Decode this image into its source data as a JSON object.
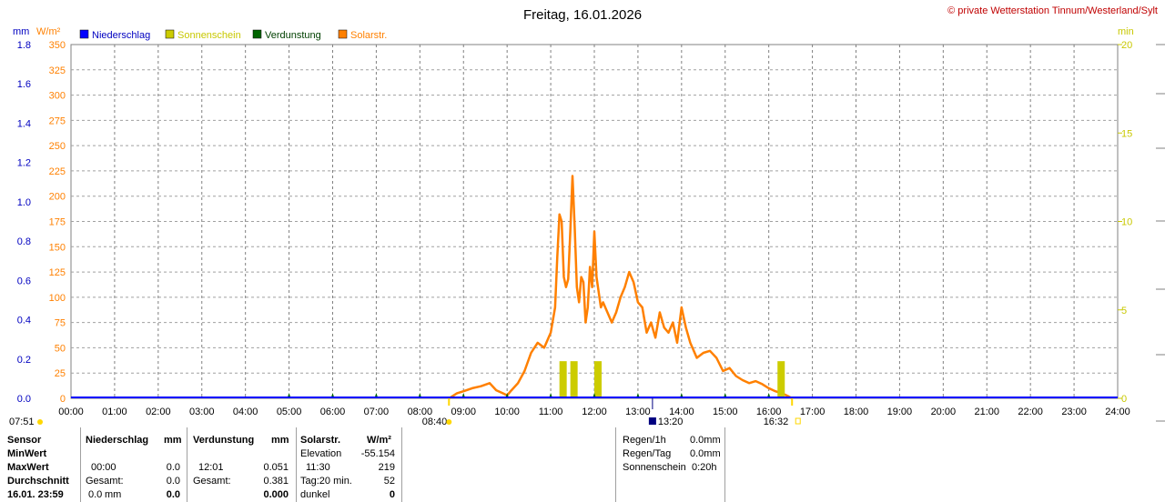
{
  "title": "Freitag, 16.01.2026",
  "copyright": "© private Wetterstation Tinnum/Westerland/Sylt",
  "units": {
    "mm": "mm",
    "wm2": "W/m²",
    "min": "min"
  },
  "legend": [
    {
      "label": "Niederschlag",
      "color": "#0000ff",
      "text_color": "#0000c0"
    },
    {
      "label": "Sonnenschein",
      "color": "#cccc00",
      "text_color": "#c8c800"
    },
    {
      "label": "Verdunstung",
      "color": "#006400",
      "text_color": "#004000"
    },
    {
      "label": "Solarstr.",
      "color": "#ff8000",
      "text_color": "#ff8000"
    }
  ],
  "markers": {
    "sunrise": "07:51",
    "solar_start": "08:40",
    "noon": "13:20",
    "solar_end": "16:32"
  },
  "chart_data": {
    "type": "line",
    "x_ticks": [
      "00:00",
      "01:00",
      "02:00",
      "03:00",
      "04:00",
      "05:00",
      "06:00",
      "07:00",
      "08:00",
      "09:00",
      "10:00",
      "11:00",
      "12:00",
      "13:00",
      "14:00",
      "15:00",
      "16:00",
      "17:00",
      "18:00",
      "19:00",
      "20:00",
      "21:00",
      "22:00",
      "23:00",
      "24:00"
    ],
    "y_left_wm2": {
      "ticks": [
        "0",
        "25",
        "50",
        "75",
        "100",
        "125",
        "150",
        "175",
        "200",
        "225",
        "250",
        "275",
        "300",
        "325",
        "350"
      ],
      "range": [
        0,
        350
      ]
    },
    "y_left_mm": {
      "ticks": [
        "0.0",
        "0.2",
        "0.4",
        "0.6",
        "0.8",
        "1.0",
        "1.2",
        "1.4",
        "1.6",
        "1.8"
      ],
      "range": [
        0,
        1.8
      ]
    },
    "y_right_min": {
      "ticks": [
        "0",
        "5",
        "10",
        "15",
        "20"
      ],
      "range": [
        0,
        20
      ]
    },
    "series": [
      {
        "name": "Solarstr.",
        "color": "#ff8000",
        "x_hours": [
          8.67,
          8.85,
          9.0,
          9.2,
          9.4,
          9.6,
          9.75,
          9.9,
          10.0,
          10.1,
          10.25,
          10.4,
          10.55,
          10.7,
          10.85,
          11.0,
          11.1,
          11.15,
          11.2,
          11.25,
          11.3,
          11.35,
          11.4,
          11.45,
          11.5,
          11.55,
          11.6,
          11.65,
          11.7,
          11.75,
          11.8,
          11.85,
          11.9,
          11.95,
          12.0,
          12.05,
          12.1,
          12.15,
          12.2,
          12.3,
          12.4,
          12.5,
          12.6,
          12.7,
          12.8,
          12.9,
          13.0,
          13.1,
          13.2,
          13.3,
          13.4,
          13.5,
          13.6,
          13.7,
          13.8,
          13.9,
          14.0,
          14.1,
          14.2,
          14.35,
          14.5,
          14.65,
          14.8,
          14.95,
          15.1,
          15.25,
          15.4,
          15.55,
          15.7,
          15.85,
          16.0,
          16.15,
          16.3,
          16.45,
          16.53
        ],
        "values": [
          0,
          5,
          7,
          10,
          12,
          15,
          8,
          5,
          3,
          8,
          15,
          27,
          45,
          55,
          50,
          65,
          90,
          140,
          182,
          175,
          120,
          110,
          118,
          165,
          220,
          170,
          110,
          95,
          120,
          115,
          75,
          90,
          130,
          110,
          165,
          120,
          105,
          90,
          95,
          85,
          75,
          85,
          100,
          110,
          125,
          115,
          95,
          90,
          65,
          75,
          60,
          85,
          70,
          65,
          75,
          55,
          90,
          70,
          55,
          40,
          45,
          47,
          40,
          27,
          30,
          22,
          18,
          15,
          17,
          14,
          10,
          7,
          5,
          2,
          0
        ]
      },
      {
        "name": "Sonnenschein",
        "color": "#cccc00",
        "x_hours": [
          11.2,
          11.45,
          12.0,
          16.2
        ],
        "values": [
          1,
          1,
          1,
          1
        ]
      },
      {
        "name": "Verdunstung",
        "color": "#006400",
        "x_hours": [
          5,
          6,
          7,
          8,
          9,
          10,
          11,
          12,
          13,
          14,
          15,
          16
        ],
        "values": [
          0,
          0,
          0,
          0,
          0,
          0,
          0,
          0,
          0,
          0,
          0,
          0
        ]
      },
      {
        "name": "Niederschlag",
        "color": "#0000ff",
        "x_hours": [
          0,
          24
        ],
        "values": [
          0,
          0
        ]
      }
    ]
  },
  "stats": {
    "sensor": "Sensor",
    "minwert": "MinWert",
    "maxwert": "MaxWert",
    "durchschnitt": "Durchschnitt",
    "last_date": "16.01. 23:59",
    "niederschlag": {
      "header": "Niederschlag",
      "unit": "mm",
      "max_time": "00:00",
      "max_value": "0.0",
      "gesamt_label": "Gesamt:",
      "gesamt_value": "0.0",
      "last_value": "0.0",
      "last_unit": "mm",
      "last_bold": "0.0"
    },
    "verdunstung": {
      "header": "Verdunstung",
      "unit": "mm",
      "max_time": "12:01",
      "max_value": "0.051",
      "gesamt_label": "Gesamt:",
      "gesamt_value": "0.381",
      "last_bold": "0.000"
    },
    "solar": {
      "header": "Solarstr.",
      "unit": "W/m²",
      "elevation_label": "Elevation",
      "elevation_value": "-55.154",
      "max_time": "11:30",
      "max_value": "219",
      "tag_label": "Tag:20 min.",
      "tag_value": "52",
      "dunkel_label": "dunkel",
      "dunkel_value": "0"
    },
    "right": {
      "regen1h_label": "Regen/1h",
      "regen1h_value": "0.0mm",
      "regentag_label": "Regen/Tag",
      "regentag_value": "0.0mm",
      "sonnen_label": "Sonnenschein",
      "sonnen_value": "0:20h"
    }
  }
}
